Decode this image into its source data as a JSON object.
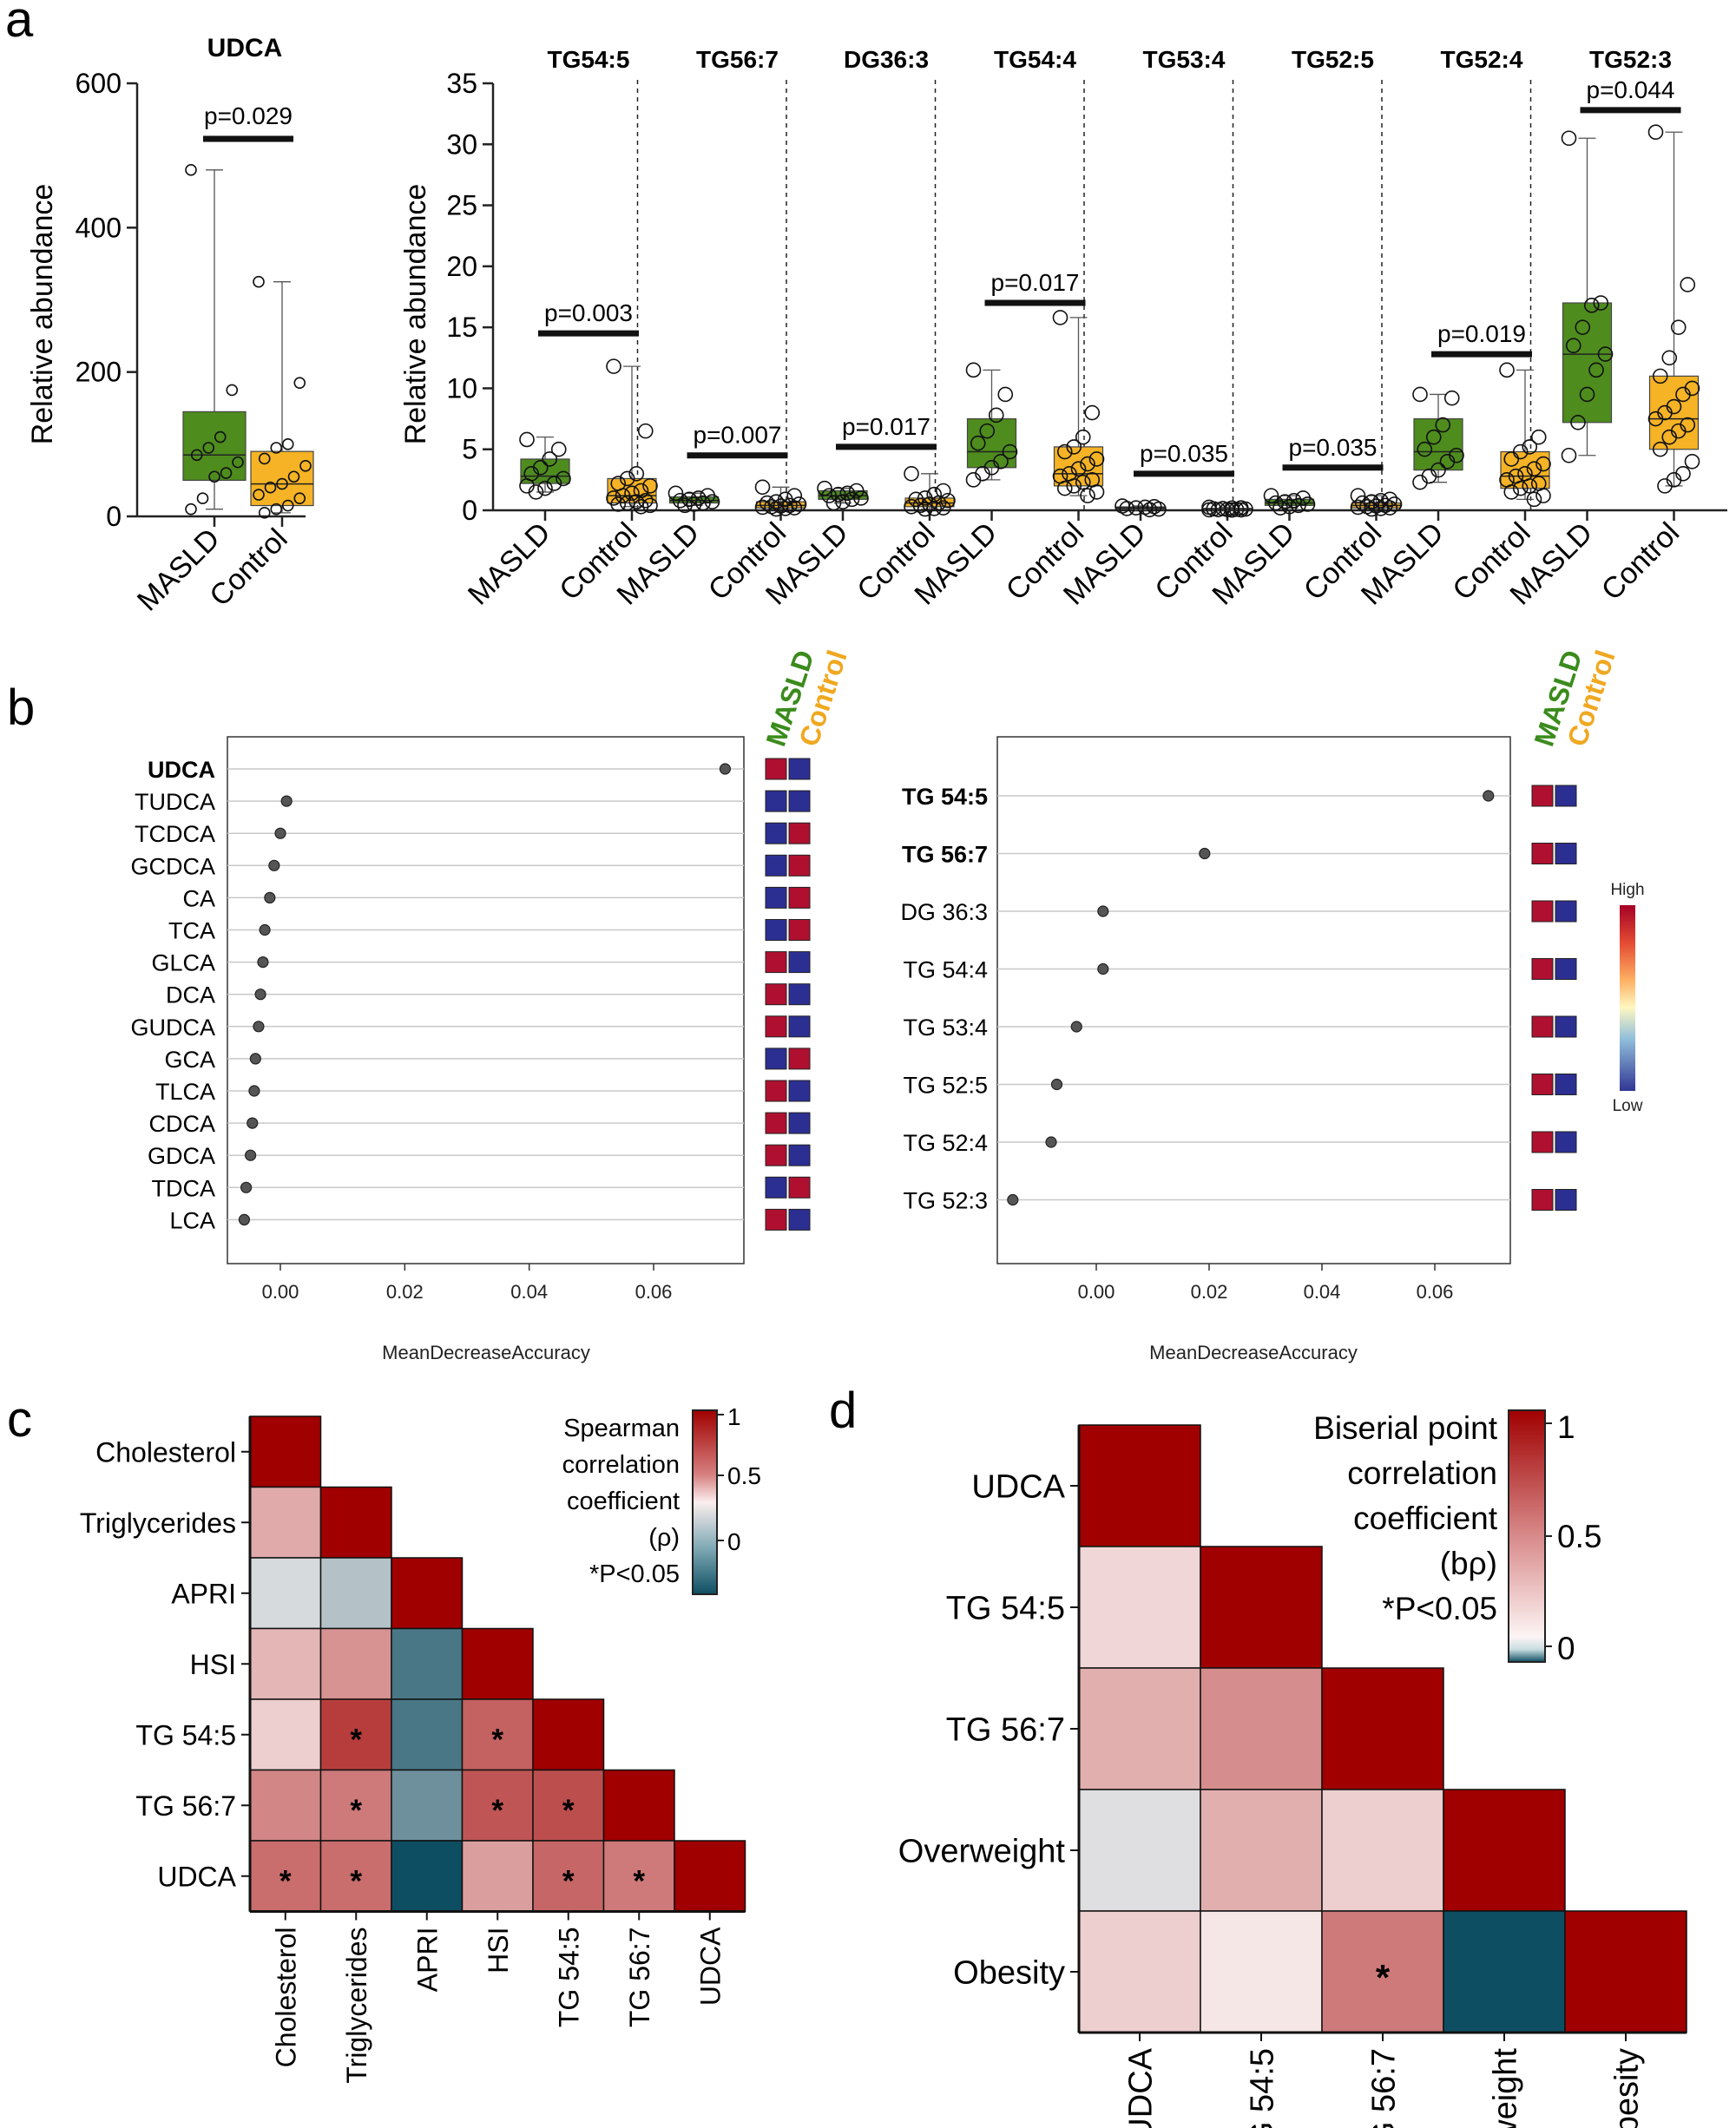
{
  "figure": {
    "panel_labels": [
      "a",
      "b",
      "c",
      "d"
    ]
  },
  "colors": {
    "masld": "#4e8c1e",
    "control": "#f5b325",
    "masld_label": "#3a8b1c",
    "control_label": "#f0a820",
    "heat_high": "#a00000",
    "heat_low": "#0e4e62",
    "dot": "#555555",
    "lipid_high": "#b01030",
    "lipid_low": "#2c2f92"
  },
  "chart_data": [
    {
      "id": "a-left",
      "type": "box",
      "title": "UDCA",
      "ylabel": "Relative abundance",
      "ylim": [
        0,
        600
      ],
      "yticks": [
        "0",
        "200",
        "400",
        "600"
      ],
      "categories": [
        "MASLD",
        "Control"
      ],
      "groups": [
        {
          "name": "MASLD",
          "min": 10,
          "q1": 50,
          "median": 85,
          "q3": 145,
          "max": 480,
          "points": [
            480,
            175,
            110,
            95,
            85,
            75,
            60,
            55,
            25,
            10
          ]
        },
        {
          "name": "Control",
          "min": 5,
          "q1": 15,
          "median": 45,
          "q3": 90,
          "max": 325,
          "points": [
            325,
            185,
            100,
            95,
            80,
            70,
            55,
            45,
            40,
            30,
            25,
            15,
            10,
            5
          ]
        }
      ],
      "pvalue": "p=0.029"
    },
    {
      "id": "a-right",
      "type": "box",
      "ylabel": "Relative abundance",
      "ylim": [
        0,
        35
      ],
      "yticks": [
        "0",
        "5",
        "10",
        "15",
        "20",
        "25",
        "30",
        "35"
      ],
      "categories": [
        "MASLD",
        "Control"
      ],
      "lipids": [
        {
          "title": "TG54:5",
          "pvalue": "p=0.003",
          "p_y": 14.5,
          "masld": {
            "min": 1.5,
            "q1": 2.2,
            "median": 2.8,
            "q3": 4.2,
            "max": 6.0,
            "points": [
              5.8,
              5.0,
              4.2,
              3.5,
              3.0,
              2.6,
              2.2,
              1.8,
              1.5,
              2.0
            ]
          },
          "control": {
            "min": 0.3,
            "q1": 0.6,
            "median": 1.2,
            "q3": 2.6,
            "max": 11.8,
            "points": [
              11.8,
              6.5,
              3.0,
              2.6,
              2.2,
              2.0,
              1.6,
              1.4,
              1.2,
              1.0,
              0.8,
              0.7,
              0.6,
              0.5,
              0.4,
              0.3
            ]
          }
        },
        {
          "title": "TG56:7",
          "pvalue": "p=0.007",
          "p_y": 4.5,
          "masld": {
            "min": 0.4,
            "q1": 0.6,
            "median": 0.8,
            "q3": 1.1,
            "max": 1.4,
            "points": [
              1.4,
              1.2,
              1.0,
              0.9,
              0.8,
              0.7,
              0.6,
              0.5,
              0.4
            ]
          },
          "control": {
            "min": 0.1,
            "q1": 0.2,
            "median": 0.4,
            "q3": 0.7,
            "max": 1.9,
            "points": [
              1.9,
              1.2,
              0.9,
              0.7,
              0.6,
              0.5,
              0.4,
              0.35,
              0.3,
              0.25,
              0.2,
              0.15,
              0.1
            ]
          }
        },
        {
          "title": "DG36:3",
          "pvalue": "p=0.017",
          "p_y": 5.2,
          "masld": {
            "min": 0.6,
            "q1": 0.9,
            "median": 1.2,
            "q3": 1.6,
            "max": 1.8,
            "points": [
              1.8,
              1.6,
              1.4,
              1.3,
              1.2,
              1.0,
              0.9,
              0.7,
              0.6
            ]
          },
          "control": {
            "min": 0.1,
            "q1": 0.3,
            "median": 0.6,
            "q3": 1.0,
            "max": 3.0,
            "points": [
              3.0,
              1.6,
              1.3,
              1.0,
              0.9,
              0.8,
              0.6,
              0.5,
              0.4,
              0.3,
              0.2,
              0.15,
              0.1
            ]
          }
        },
        {
          "title": "TG54:4",
          "pvalue": "p=0.017",
          "p_y": 17.0,
          "masld": {
            "min": 2.5,
            "q1": 3.5,
            "median": 4.8,
            "q3": 7.5,
            "max": 11.5,
            "points": [
              11.5,
              9.5,
              7.8,
              6.5,
              5.5,
              4.8,
              4.0,
              3.5,
              3.0,
              2.5
            ]
          },
          "control": {
            "min": 1.2,
            "q1": 2.0,
            "median": 3.0,
            "q3": 5.2,
            "max": 15.8,
            "points": [
              15.8,
              8.0,
              6.0,
              5.2,
              4.8,
              4.2,
              3.8,
              3.4,
              3.0,
              2.8,
              2.5,
              2.3,
              2.0,
              1.8,
              1.5,
              1.2
            ]
          }
        },
        {
          "title": "TG53:4",
          "pvalue": "p=0.035",
          "p_y": 3.0,
          "masld": {
            "min": 0.05,
            "q1": 0.12,
            "median": 0.2,
            "q3": 0.28,
            "max": 0.35,
            "points": [
              0.35,
              0.3,
              0.25,
              0.2,
              0.15,
              0.1,
              0.05
            ]
          },
          "control": {
            "min": 0.02,
            "q1": 0.05,
            "median": 0.1,
            "q3": 0.16,
            "max": 0.25,
            "points": [
              0.25,
              0.2,
              0.18,
              0.15,
              0.12,
              0.1,
              0.08,
              0.06,
              0.05,
              0.04,
              0.03,
              0.02
            ]
          }
        },
        {
          "title": "TG52:5",
          "pvalue": "p=0.035",
          "p_y": 3.5,
          "masld": {
            "min": 0.2,
            "q1": 0.4,
            "median": 0.6,
            "q3": 0.9,
            "max": 1.2,
            "points": [
              1.2,
              1.0,
              0.8,
              0.7,
              0.6,
              0.5,
              0.4,
              0.3,
              0.2
            ]
          },
          "control": {
            "min": 0.1,
            "q1": 0.2,
            "median": 0.4,
            "q3": 0.6,
            "max": 1.2,
            "points": [
              1.2,
              0.9,
              0.8,
              0.7,
              0.6,
              0.5,
              0.4,
              0.35,
              0.3,
              0.25,
              0.2,
              0.15,
              0.1
            ]
          }
        },
        {
          "title": "TG52:4",
          "pvalue": "p=0.019",
          "p_y": 12.8,
          "masld": {
            "min": 2.3,
            "q1": 3.3,
            "median": 4.8,
            "q3": 7.5,
            "max": 9.5,
            "points": [
              9.5,
              9.2,
              7.0,
              6.0,
              5.0,
              4.5,
              4.0,
              3.3,
              2.8,
              2.3
            ]
          },
          "control": {
            "min": 0.9,
            "q1": 1.8,
            "median": 2.8,
            "q3": 4.8,
            "max": 11.5,
            "points": [
              11.5,
              6.0,
              5.2,
              4.8,
              4.2,
              3.8,
              3.4,
              3.0,
              2.8,
              2.5,
              2.2,
              2.0,
              1.8,
              1.5,
              1.2,
              0.9
            ]
          }
        },
        {
          "title": "TG52:3",
          "pvalue": "p=0.044",
          "p_y": 32.8,
          "masld": {
            "min": 4.5,
            "q1": 7.2,
            "median": 12.8,
            "q3": 17.0,
            "max": 30.5,
            "points": [
              30.5,
              17.0,
              16.8,
              15.0,
              13.5,
              12.8,
              11.5,
              9.5,
              7.2,
              4.5
            ]
          },
          "control": {
            "min": 2.0,
            "q1": 5.0,
            "median": 7.5,
            "q3": 11.0,
            "max": 31.0,
            "points": [
              31.0,
              18.5,
              15.0,
              12.5,
              11.0,
              10.0,
              9.5,
              8.5,
              8.0,
              7.5,
              7.0,
              6.5,
              6.0,
              5.0,
              4.0,
              3.0,
              2.5,
              2.0
            ]
          }
        }
      ]
    },
    {
      "id": "b-left",
      "type": "dotplot",
      "xlabel": "MeanDecreaseAccuracy",
      "xlim": [
        -0.008,
        0.075
      ],
      "xticks": [
        0.0,
        0.02,
        0.04,
        0.06
      ],
      "xtick_labels": [
        "0.00",
        "0.02",
        "0.04",
        "0.06"
      ],
      "legend": [
        "MASLD",
        "Control"
      ],
      "items": [
        {
          "label": "UDCA",
          "value": 0.0715,
          "bold": true,
          "masld": "high",
          "control": "low"
        },
        {
          "label": "TUDCA",
          "value": 0.001,
          "masld": "low",
          "control": "low"
        },
        {
          "label": "TCDCA",
          "value": 0.0,
          "masld": "low",
          "control": "high"
        },
        {
          "label": "GCDCA",
          "value": -0.001,
          "masld": "low",
          "control": "high"
        },
        {
          "label": "CA",
          "value": -0.0017,
          "masld": "low",
          "control": "high"
        },
        {
          "label": "TCA",
          "value": -0.0025,
          "masld": "low",
          "control": "high"
        },
        {
          "label": "GLCA",
          "value": -0.0028,
          "masld": "high",
          "control": "low"
        },
        {
          "label": "DCA",
          "value": -0.0032,
          "masld": "high",
          "control": "low"
        },
        {
          "label": "GUDCA",
          "value": -0.0035,
          "masld": "high",
          "control": "low"
        },
        {
          "label": "GCA",
          "value": -0.004,
          "masld": "low",
          "control": "high"
        },
        {
          "label": "TLCA",
          "value": -0.0042,
          "masld": "high",
          "control": "low"
        },
        {
          "label": "CDCA",
          "value": -0.0045,
          "masld": "high",
          "control": "low"
        },
        {
          "label": "GDCA",
          "value": -0.0048,
          "masld": "high",
          "control": "low"
        },
        {
          "label": "TDCA",
          "value": -0.0055,
          "masld": "low",
          "control": "high"
        },
        {
          "label": "LCA",
          "value": -0.0058,
          "masld": "high",
          "control": "low"
        }
      ]
    },
    {
      "id": "b-right",
      "type": "dotplot",
      "xlabel": "MeanDecreaseAccuracy",
      "xlim": [
        -0.018,
        0.072
      ],
      "xticks": [
        0.0,
        0.02,
        0.04,
        0.06
      ],
      "xtick_labels": [
        "0.00",
        "0.02",
        "0.04",
        "0.06"
      ],
      "legend": [
        "MASLD",
        "Control"
      ],
      "colorbar": {
        "high": "High",
        "low": "Low"
      },
      "items": [
        {
          "label": "TG 54:5",
          "value": 0.0695,
          "bold": true,
          "masld": "high",
          "control": "low"
        },
        {
          "label": "TG 56:7",
          "value": 0.0192,
          "bold": true,
          "masld": "high",
          "control": "low"
        },
        {
          "label": "DG 36:3",
          "value": 0.0012,
          "masld": "high",
          "control": "low"
        },
        {
          "label": "TG 54:4",
          "value": 0.0012,
          "masld": "high",
          "control": "low"
        },
        {
          "label": "TG 53:4",
          "value": -0.0035,
          "masld": "high",
          "control": "low"
        },
        {
          "label": "TG 52:5",
          "value": -0.007,
          "masld": "high",
          "control": "low"
        },
        {
          "label": "TG 52:4",
          "value": -0.008,
          "masld": "high",
          "control": "low"
        },
        {
          "label": "TG 52:3",
          "value": -0.0148,
          "masld": "high",
          "control": "low"
        }
      ]
    },
    {
      "id": "c",
      "type": "heatmap",
      "labels": [
        "Cholesterol",
        "Triglycerides",
        "APRI",
        "HSI",
        "TG 54:5",
        "TG 56:7",
        "UDCA"
      ],
      "values": [
        [
          1.0
        ],
        [
          0.3,
          1.0
        ],
        [
          -0.15,
          -0.3,
          1.0
        ],
        [
          0.25,
          0.4,
          -0.75,
          1.0
        ],
        [
          0.15,
          0.75,
          -0.75,
          0.6,
          1.0
        ],
        [
          0.45,
          0.5,
          -0.6,
          0.65,
          0.68,
          1.0
        ],
        [
          0.55,
          0.55,
          -1.0,
          0.35,
          0.58,
          0.5,
          1.0
        ]
      ],
      "significant": [
        [
          4,
          1
        ],
        [
          4,
          3
        ],
        [
          5,
          1
        ],
        [
          5,
          3
        ],
        [
          5,
          4
        ],
        [
          6,
          0
        ],
        [
          6,
          1
        ],
        [
          6,
          4
        ],
        [
          6,
          5
        ]
      ],
      "colorbar_title": [
        "Spearman",
        "correlation",
        "coefficient",
        "(ρ)",
        "*P<0.05"
      ],
      "colorbar_ticks": [
        "1",
        "0.5",
        "0"
      ]
    },
    {
      "id": "d",
      "type": "heatmap",
      "labels": [
        "UDCA",
        "TG 54:5",
        "TG 56:7",
        "Overweight",
        "Obesity"
      ],
      "values": [
        [
          1.0
        ],
        [
          0.12,
          1.0
        ],
        [
          0.28,
          0.42,
          1.0
        ],
        [
          -0.12,
          0.28,
          0.15,
          1.0
        ],
        [
          0.15,
          0.05,
          0.5,
          -1.0,
          1.0
        ]
      ],
      "significant": [
        [
          4,
          2
        ]
      ],
      "colorbar_title": [
        "Biserial point",
        "correlation",
        "coefficient",
        "(bρ)",
        "*P<0.05"
      ],
      "colorbar_ticks": [
        "1",
        "0.5",
        "0"
      ]
    }
  ]
}
